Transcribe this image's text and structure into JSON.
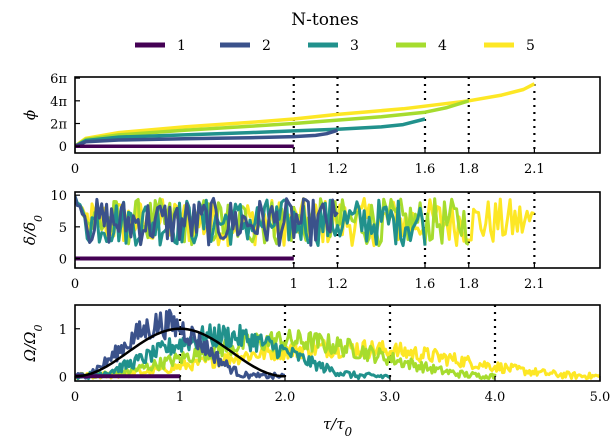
{
  "chart_data": [
    {
      "type": "line",
      "panel": "phi",
      "ylabel": "ϕ",
      "xlim": [
        0,
        2.4
      ],
      "ylim": [
        -0.6,
        6.1
      ],
      "ytick_labels": [
        "0",
        "2π",
        "4π",
        "6π"
      ],
      "ytick_values": [
        0,
        2,
        4,
        6
      ],
      "xtick_values": [
        0,
        1,
        1.2,
        1.6,
        1.8,
        2.1
      ],
      "xtick_labels": [
        "0",
        "1",
        "1.2",
        "1.6",
        "1.8",
        "2.1"
      ],
      "vlines": [
        1,
        1.2,
        1.6,
        1.8,
        2.1
      ],
      "series": [
        {
          "name": "1",
          "x": [
            0,
            1.0
          ],
          "y": [
            0,
            0
          ]
        },
        {
          "name": "2",
          "x": [
            0,
            0.05,
            0.2,
            0.5,
            0.8,
            1.0,
            1.1,
            1.15,
            1.2
          ],
          "y": [
            0,
            0.4,
            0.55,
            0.65,
            0.75,
            0.85,
            0.95,
            1.1,
            1.4
          ]
        },
        {
          "name": "3",
          "x": [
            0,
            0.05,
            0.2,
            0.5,
            0.8,
            1.0,
            1.2,
            1.4,
            1.5,
            1.6
          ],
          "y": [
            0,
            0.5,
            0.8,
            1.0,
            1.2,
            1.35,
            1.5,
            1.7,
            1.9,
            2.4
          ]
        },
        {
          "name": "4",
          "x": [
            0,
            0.05,
            0.2,
            0.5,
            0.8,
            1.0,
            1.2,
            1.4,
            1.6,
            1.7,
            1.8
          ],
          "y": [
            0,
            0.6,
            1.0,
            1.4,
            1.75,
            2.0,
            2.3,
            2.6,
            3.0,
            3.4,
            4.0
          ]
        },
        {
          "name": "5",
          "x": [
            0,
            0.05,
            0.2,
            0.5,
            0.8,
            1.0,
            1.2,
            1.5,
            1.8,
            1.95,
            2.05,
            2.1
          ],
          "y": [
            0,
            0.7,
            1.2,
            1.7,
            2.1,
            2.4,
            2.8,
            3.3,
            4.0,
            4.5,
            5.0,
            5.5
          ]
        }
      ]
    },
    {
      "type": "line",
      "panel": "delta",
      "ylabel": "δ/δ0",
      "xlim": [
        0,
        2.4
      ],
      "ylim": [
        -1.5,
        10.5
      ],
      "ytick_values": [
        0,
        5,
        10
      ],
      "ytick_labels": [
        "0",
        "5",
        "10"
      ],
      "xtick_values": [
        0,
        1,
        1.2,
        1.6,
        1.8,
        2.1
      ],
      "xtick_labels": [
        "0",
        "1",
        "1.2",
        "1.6",
        "1.8",
        "2.1"
      ],
      "vlines": [
        1,
        1.2,
        1.6,
        1.8,
        2.1
      ],
      "series": [
        {
          "name": "1",
          "x": [
            0,
            1.0
          ],
          "y": [
            0,
            0
          ],
          "noisy": false
        },
        {
          "name": "2",
          "x_range": [
            0,
            1.2
          ],
          "y_range": [
            2,
            9.5
          ],
          "noisy": true
        },
        {
          "name": "3",
          "x_range": [
            0,
            1.6
          ],
          "y_range": [
            2,
            9.5
          ],
          "noisy": true
        },
        {
          "name": "4",
          "x_range": [
            0,
            1.8
          ],
          "y_range": [
            2,
            9.5
          ],
          "noisy": true
        },
        {
          "name": "5",
          "x_range": [
            0,
            2.1
          ],
          "y_range": [
            2,
            9.5
          ],
          "noisy": true
        }
      ]
    },
    {
      "type": "line",
      "panel": "omega",
      "ylabel": "Ω/Ω0",
      "xlabel": "τ/τ0",
      "xlim": [
        0,
        5.0
      ],
      "ylim": [
        -0.1,
        1.5
      ],
      "ytick_values": [
        0,
        1
      ],
      "ytick_labels": [
        "0",
        "1"
      ],
      "xtick_values": [
        0,
        1,
        2,
        3,
        4,
        5
      ],
      "xtick_labels": [
        "0",
        "1",
        "2.0",
        "3.0",
        "4.0",
        "5.0"
      ],
      "vlines": [
        1,
        2,
        3,
        4
      ],
      "reference_curve": {
        "name": "target",
        "center": 1.0,
        "width": 1.0,
        "peak": 1.0
      },
      "series": [
        {
          "name": "1",
          "x": [
            0,
            1.0
          ],
          "y": [
            0,
            0
          ],
          "noisy": false
        },
        {
          "name": "2",
          "center": 0.85,
          "width": 1.0,
          "peak": 1.1,
          "x_range": [
            0,
            2.0
          ],
          "noisy": true
        },
        {
          "name": "3",
          "center": 1.4,
          "width": 1.55,
          "peak": 0.85,
          "x_range": [
            0,
            3.0
          ],
          "noisy": true
        },
        {
          "name": "4",
          "center": 2.0,
          "width": 2.0,
          "peak": 0.75,
          "x_range": [
            0,
            4.0
          ],
          "noisy": true
        },
        {
          "name": "5",
          "center": 2.5,
          "width": 2.5,
          "peak": 0.6,
          "x_range": [
            0,
            5.0
          ],
          "noisy": true
        }
      ]
    }
  ],
  "legend": {
    "title": "N-tones",
    "placement": "top-center",
    "entries": [
      "1",
      "2",
      "3",
      "4",
      "5"
    ]
  },
  "colors": {
    "1": "#440154",
    "2": "#3b528b",
    "3": "#21918c",
    "4": "#a6dc2e",
    "5": "#fde725",
    "reference": "#000000"
  }
}
